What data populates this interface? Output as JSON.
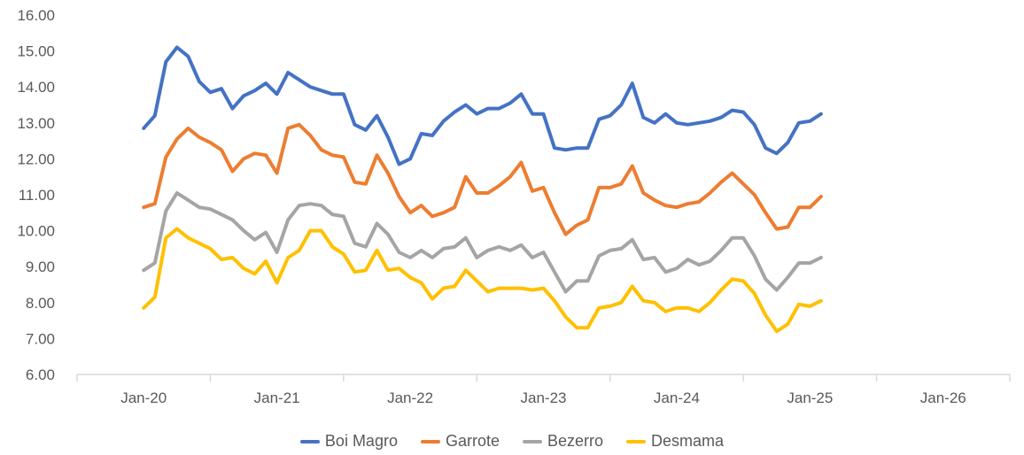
{
  "chart_data": {
    "type": "line",
    "title": "",
    "xlabel": "",
    "ylabel": "",
    "ylim": [
      6,
      16
    ],
    "y_ticks": [
      "6.00",
      "7.00",
      "8.00",
      "9.00",
      "10.00",
      "11.00",
      "12.00",
      "13.00",
      "14.00",
      "15.00",
      "16.00"
    ],
    "x_ticks": [
      "Jan-20",
      "Jan-21",
      "Jan-22",
      "Jan-23",
      "Jan-24",
      "Jan-25",
      "Jan-26"
    ],
    "x_start": "Jan-20",
    "x_frequency": "monthly",
    "xlim_months": [
      -6,
      78
    ],
    "grid": false,
    "legend_position": "bottom",
    "series": [
      {
        "name": "Boi Magro",
        "color": "#4472C4",
        "values": [
          12.85,
          13.2,
          14.7,
          15.1,
          14.85,
          14.15,
          13.85,
          13.95,
          13.4,
          13.75,
          13.9,
          14.1,
          13.8,
          14.4,
          14.2,
          14.0,
          13.9,
          13.8,
          13.8,
          12.95,
          12.8,
          13.2,
          12.6,
          11.85,
          12.0,
          12.7,
          12.65,
          13.05,
          13.3,
          13.5,
          13.25,
          13.4,
          13.4,
          13.55,
          13.8,
          13.25,
          13.25,
          12.3,
          12.25,
          12.3,
          12.3,
          13.1,
          13.2,
          13.5,
          14.1,
          13.15,
          13.0,
          13.25,
          13.0,
          12.95,
          13.0,
          13.05,
          13.15,
          13.35,
          13.3,
          12.95,
          12.3,
          12.15,
          12.45,
          13.0,
          13.05,
          13.25
        ]
      },
      {
        "name": "Garrote",
        "color": "#ED7D31",
        "values": [
          10.65,
          10.75,
          12.05,
          12.55,
          12.85,
          12.6,
          12.45,
          12.25,
          11.65,
          12.0,
          12.15,
          12.1,
          11.6,
          12.85,
          12.95,
          12.65,
          12.25,
          12.1,
          12.05,
          11.35,
          11.3,
          12.1,
          11.6,
          10.95,
          10.5,
          10.7,
          10.4,
          10.5,
          10.65,
          11.5,
          11.05,
          11.05,
          11.25,
          11.5,
          11.9,
          11.1,
          11.2,
          10.5,
          9.9,
          10.15,
          10.3,
          11.2,
          11.2,
          11.3,
          11.8,
          11.05,
          10.85,
          10.7,
          10.65,
          10.75,
          10.8,
          11.05,
          11.35,
          11.6,
          11.3,
          11.0,
          10.5,
          10.05,
          10.1,
          10.65,
          10.65,
          10.95
        ]
      },
      {
        "name": "Bezerro",
        "color": "#A5A5A5",
        "values": [
          8.9,
          9.1,
          10.55,
          11.05,
          10.85,
          10.65,
          10.6,
          10.45,
          10.3,
          10.0,
          9.75,
          9.95,
          9.4,
          10.3,
          10.7,
          10.75,
          10.7,
          10.45,
          10.4,
          9.65,
          9.55,
          10.2,
          9.9,
          9.4,
          9.25,
          9.45,
          9.25,
          9.5,
          9.55,
          9.8,
          9.25,
          9.45,
          9.55,
          9.45,
          9.6,
          9.25,
          9.4,
          8.85,
          8.3,
          8.6,
          8.6,
          9.3,
          9.45,
          9.5,
          9.75,
          9.2,
          9.25,
          8.85,
          8.95,
          9.2,
          9.05,
          9.15,
          9.45,
          9.8,
          9.8,
          9.3,
          8.65,
          8.35,
          8.7,
          9.1,
          9.1,
          9.25
        ]
      },
      {
        "name": "Desmama",
        "color": "#FFC000",
        "values": [
          7.85,
          8.15,
          9.8,
          10.05,
          9.8,
          9.65,
          9.5,
          9.2,
          9.25,
          8.95,
          8.8,
          9.15,
          8.55,
          9.25,
          9.45,
          10.0,
          10.0,
          9.55,
          9.35,
          8.85,
          8.9,
          9.45,
          8.9,
          8.95,
          8.7,
          8.55,
          8.1,
          8.4,
          8.45,
          8.9,
          8.6,
          8.3,
          8.4,
          8.4,
          8.4,
          8.35,
          8.4,
          8.05,
          7.6,
          7.3,
          7.3,
          7.85,
          7.9,
          8.0,
          8.45,
          8.05,
          8.0,
          7.75,
          7.85,
          7.85,
          7.75,
          8.0,
          8.35,
          8.65,
          8.6,
          8.25,
          7.65,
          7.2,
          7.4,
          7.95,
          7.9,
          8.05
        ]
      }
    ]
  }
}
